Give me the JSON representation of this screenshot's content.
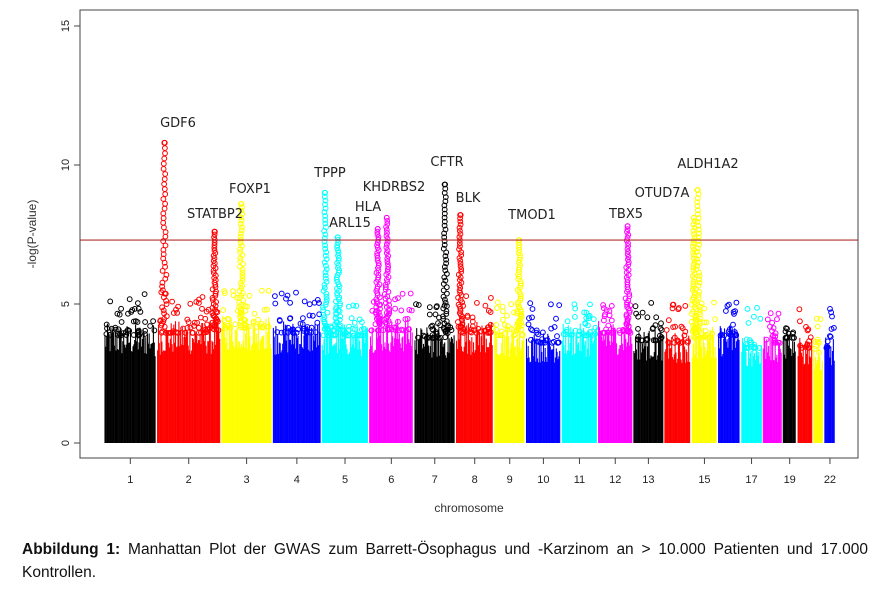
{
  "chart_data": {
    "type": "scatter",
    "subtype": "manhattan",
    "xlabel": "chromosome",
    "ylabel": "-log(P-value)",
    "ylim": [
      0,
      15
    ],
    "y_ticks": [
      0,
      5,
      10,
      15
    ],
    "x_tick_labels": [
      "1",
      "2",
      "3",
      "4",
      "5",
      "6",
      "7",
      "8",
      "9",
      "10",
      "11",
      "12",
      "13",
      "15",
      "17",
      "19",
      "22"
    ],
    "significance_threshold": 7.3,
    "threshold_color": "#b03030",
    "chromosomes": [
      {
        "chr": "1",
        "color": "#000000",
        "base_max": 4.3
      },
      {
        "chr": "2",
        "color": "#ff0000",
        "base_max": 4.4
      },
      {
        "chr": "3",
        "color": "#ffff00",
        "base_max": 4.6
      },
      {
        "chr": "4",
        "color": "#0000ff",
        "base_max": 4.4
      },
      {
        "chr": "5",
        "color": "#00ffff",
        "base_max": 4.3
      },
      {
        "chr": "6",
        "color": "#ff00ff",
        "base_max": 4.5
      },
      {
        "chr": "7",
        "color": "#000000",
        "base_max": 4.2
      },
      {
        "chr": "8",
        "color": "#ff0000",
        "base_max": 4.4
      },
      {
        "chr": "9",
        "color": "#ffff00",
        "base_max": 4.3
      },
      {
        "chr": "10",
        "color": "#0000ff",
        "base_max": 4.0
      },
      {
        "chr": "11",
        "color": "#00ffff",
        "base_max": 4.3
      },
      {
        "chr": "12",
        "color": "#ff00ff",
        "base_max": 4.4
      },
      {
        "chr": "13",
        "color": "#000000",
        "base_max": 4.1
      },
      {
        "chr": "14",
        "color": "#ff0000",
        "base_max": 4.0
      },
      {
        "chr": "15",
        "color": "#ffff00",
        "base_max": 4.2
      },
      {
        "chr": "16",
        "color": "#0000ff",
        "base_max": 4.3
      },
      {
        "chr": "17",
        "color": "#00ffff",
        "base_max": 3.8
      },
      {
        "chr": "18",
        "color": "#ff00ff",
        "base_max": 4.0
      },
      {
        "chr": "19",
        "color": "#000000",
        "base_max": 4.2
      },
      {
        "chr": "20",
        "color": "#ff0000",
        "base_max": 3.8
      },
      {
        "chr": "21",
        "color": "#ffff00",
        "base_max": 3.6
      },
      {
        "chr": "22",
        "color": "#0000ff",
        "base_max": 3.8
      }
    ],
    "peaks": [
      {
        "gene": "GDF6",
        "chr": "2",
        "pos": 0.12,
        "max": 10.8
      },
      {
        "gene": "STATBP2",
        "chr": "2",
        "pos": 0.9,
        "max": 7.6
      },
      {
        "gene": "FOXP1",
        "chr": "3",
        "pos": 0.4,
        "max": 8.6
      },
      {
        "gene": "TPPP",
        "chr": "5",
        "pos": 0.08,
        "max": 9.0
      },
      {
        "gene": "ARL15",
        "chr": "5",
        "pos": 0.35,
        "max": 7.4
      },
      {
        "gene": "HLA",
        "chr": "6",
        "pos": 0.2,
        "max": 7.7
      },
      {
        "gene": "KHDRBS2",
        "chr": "6",
        "pos": 0.4,
        "max": 8.1
      },
      {
        "gene": "CFTR",
        "chr": "7",
        "pos": 0.75,
        "max": 9.3
      },
      {
        "gene": "BLK",
        "chr": "8",
        "pos": 0.12,
        "max": 8.2
      },
      {
        "gene": "TMOD1",
        "chr": "9",
        "pos": 0.8,
        "max": 7.3
      },
      {
        "gene": "TBX5",
        "chr": "12",
        "pos": 0.85,
        "max": 7.8
      },
      {
        "gene": "OTUD7A",
        "chr": "15",
        "pos": 0.1,
        "max": 8.1
      },
      {
        "gene": "ALDH1A2",
        "chr": "15",
        "pos": 0.25,
        "max": 9.1
      }
    ]
  },
  "caption": {
    "label": "Abbildung 1:",
    "text": " Manhattan Plot der GWAS zum Barrett-Ösophagus und -Karzinom an > 10.000 Patienten und 17.000 Kontrollen."
  }
}
